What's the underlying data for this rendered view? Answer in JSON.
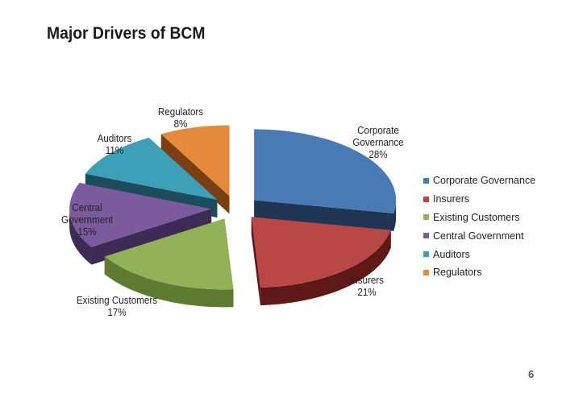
{
  "slide": {
    "title": "Major Drivers of BCM",
    "page_number": "6"
  },
  "chart_data": {
    "type": "pie",
    "style": "3d-exploded",
    "title": "",
    "legend_position": "right",
    "slices": [
      {
        "name": "Corporate Governance",
        "label_lines": [
          "Corporate",
          "Governance"
        ],
        "value": 28,
        "pct_label": "28%",
        "color": "#4a7ab4",
        "dark": "#1f3553"
      },
      {
        "name": "Insurers",
        "label_lines": [
          "Insurers"
        ],
        "value": 21,
        "pct_label": "21%",
        "color": "#b94745",
        "dark": "#5e1818"
      },
      {
        "name": "Existing Customers",
        "label_lines": [
          "Existing Customers"
        ],
        "value": 17,
        "pct_label": "17%",
        "color": "#93b257",
        "dark": "#5f7a31"
      },
      {
        "name": "Central Government",
        "label_lines": [
          "Central",
          "Government"
        ],
        "value": 15,
        "pct_label": "15%",
        "color": "#7b5b9e",
        "dark": "#3d2a55"
      },
      {
        "name": "Auditors",
        "label_lines": [
          "Auditors"
        ],
        "value": 11,
        "pct_label": "11%",
        "color": "#3ea0b8",
        "dark": "#1c4d5c"
      },
      {
        "name": "Regulators",
        "label_lines": [
          "Regulators"
        ],
        "value": 8,
        "pct_label": "8%",
        "color": "#e58a3c",
        "dark": "#7a3f12"
      }
    ]
  }
}
